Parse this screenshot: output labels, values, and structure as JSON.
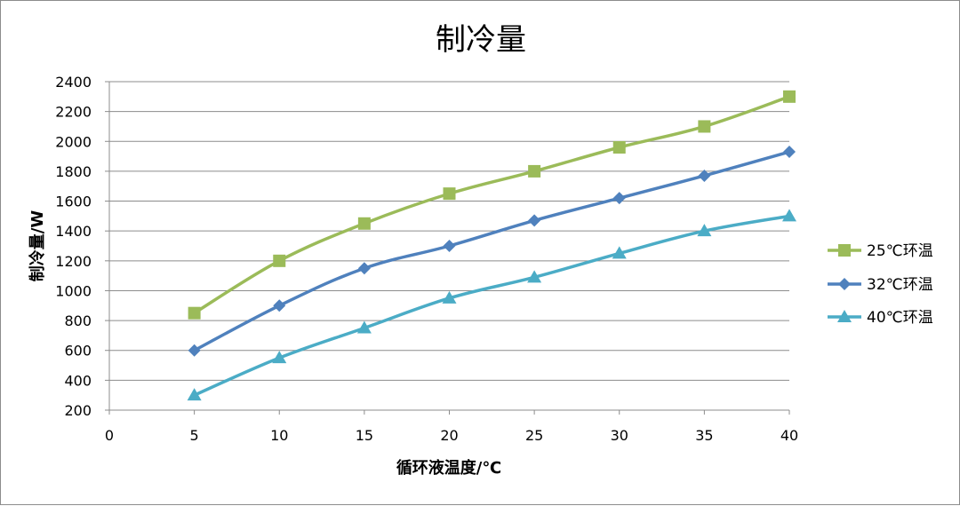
{
  "chart_data": {
    "type": "line",
    "title": "制冷量",
    "xlabel": "循环液温度/℃",
    "ylabel": "制冷量/W",
    "xlim": [
      0,
      40
    ],
    "ylim": [
      200,
      2400
    ],
    "x_ticks": [
      "0",
      "5",
      "10",
      "15",
      "20",
      "25",
      "30",
      "35",
      "40"
    ],
    "y_ticks": [
      "200",
      "400",
      "600",
      "800",
      "1000",
      "1200",
      "1400",
      "1600",
      "1800",
      "2000",
      "2200",
      "2400"
    ],
    "grid": true,
    "legend_position": "right",
    "x": [
      5,
      10,
      15,
      20,
      25,
      30,
      35,
      40
    ],
    "series": [
      {
        "name": "25℃环温",
        "color": "#9bbb59",
        "marker": "square",
        "values": [
          850,
          1200,
          1450,
          1650,
          1800,
          1960,
          2100,
          2300
        ]
      },
      {
        "name": "32℃环温",
        "color": "#4f81bd",
        "marker": "diamond",
        "values": [
          600,
          900,
          1150,
          1300,
          1470,
          1620,
          1770,
          1930
        ]
      },
      {
        "name": "40℃环温",
        "color": "#4bacc6",
        "marker": "triangle",
        "values": [
          300,
          550,
          750,
          950,
          1090,
          1250,
          1400,
          1500
        ]
      }
    ]
  }
}
